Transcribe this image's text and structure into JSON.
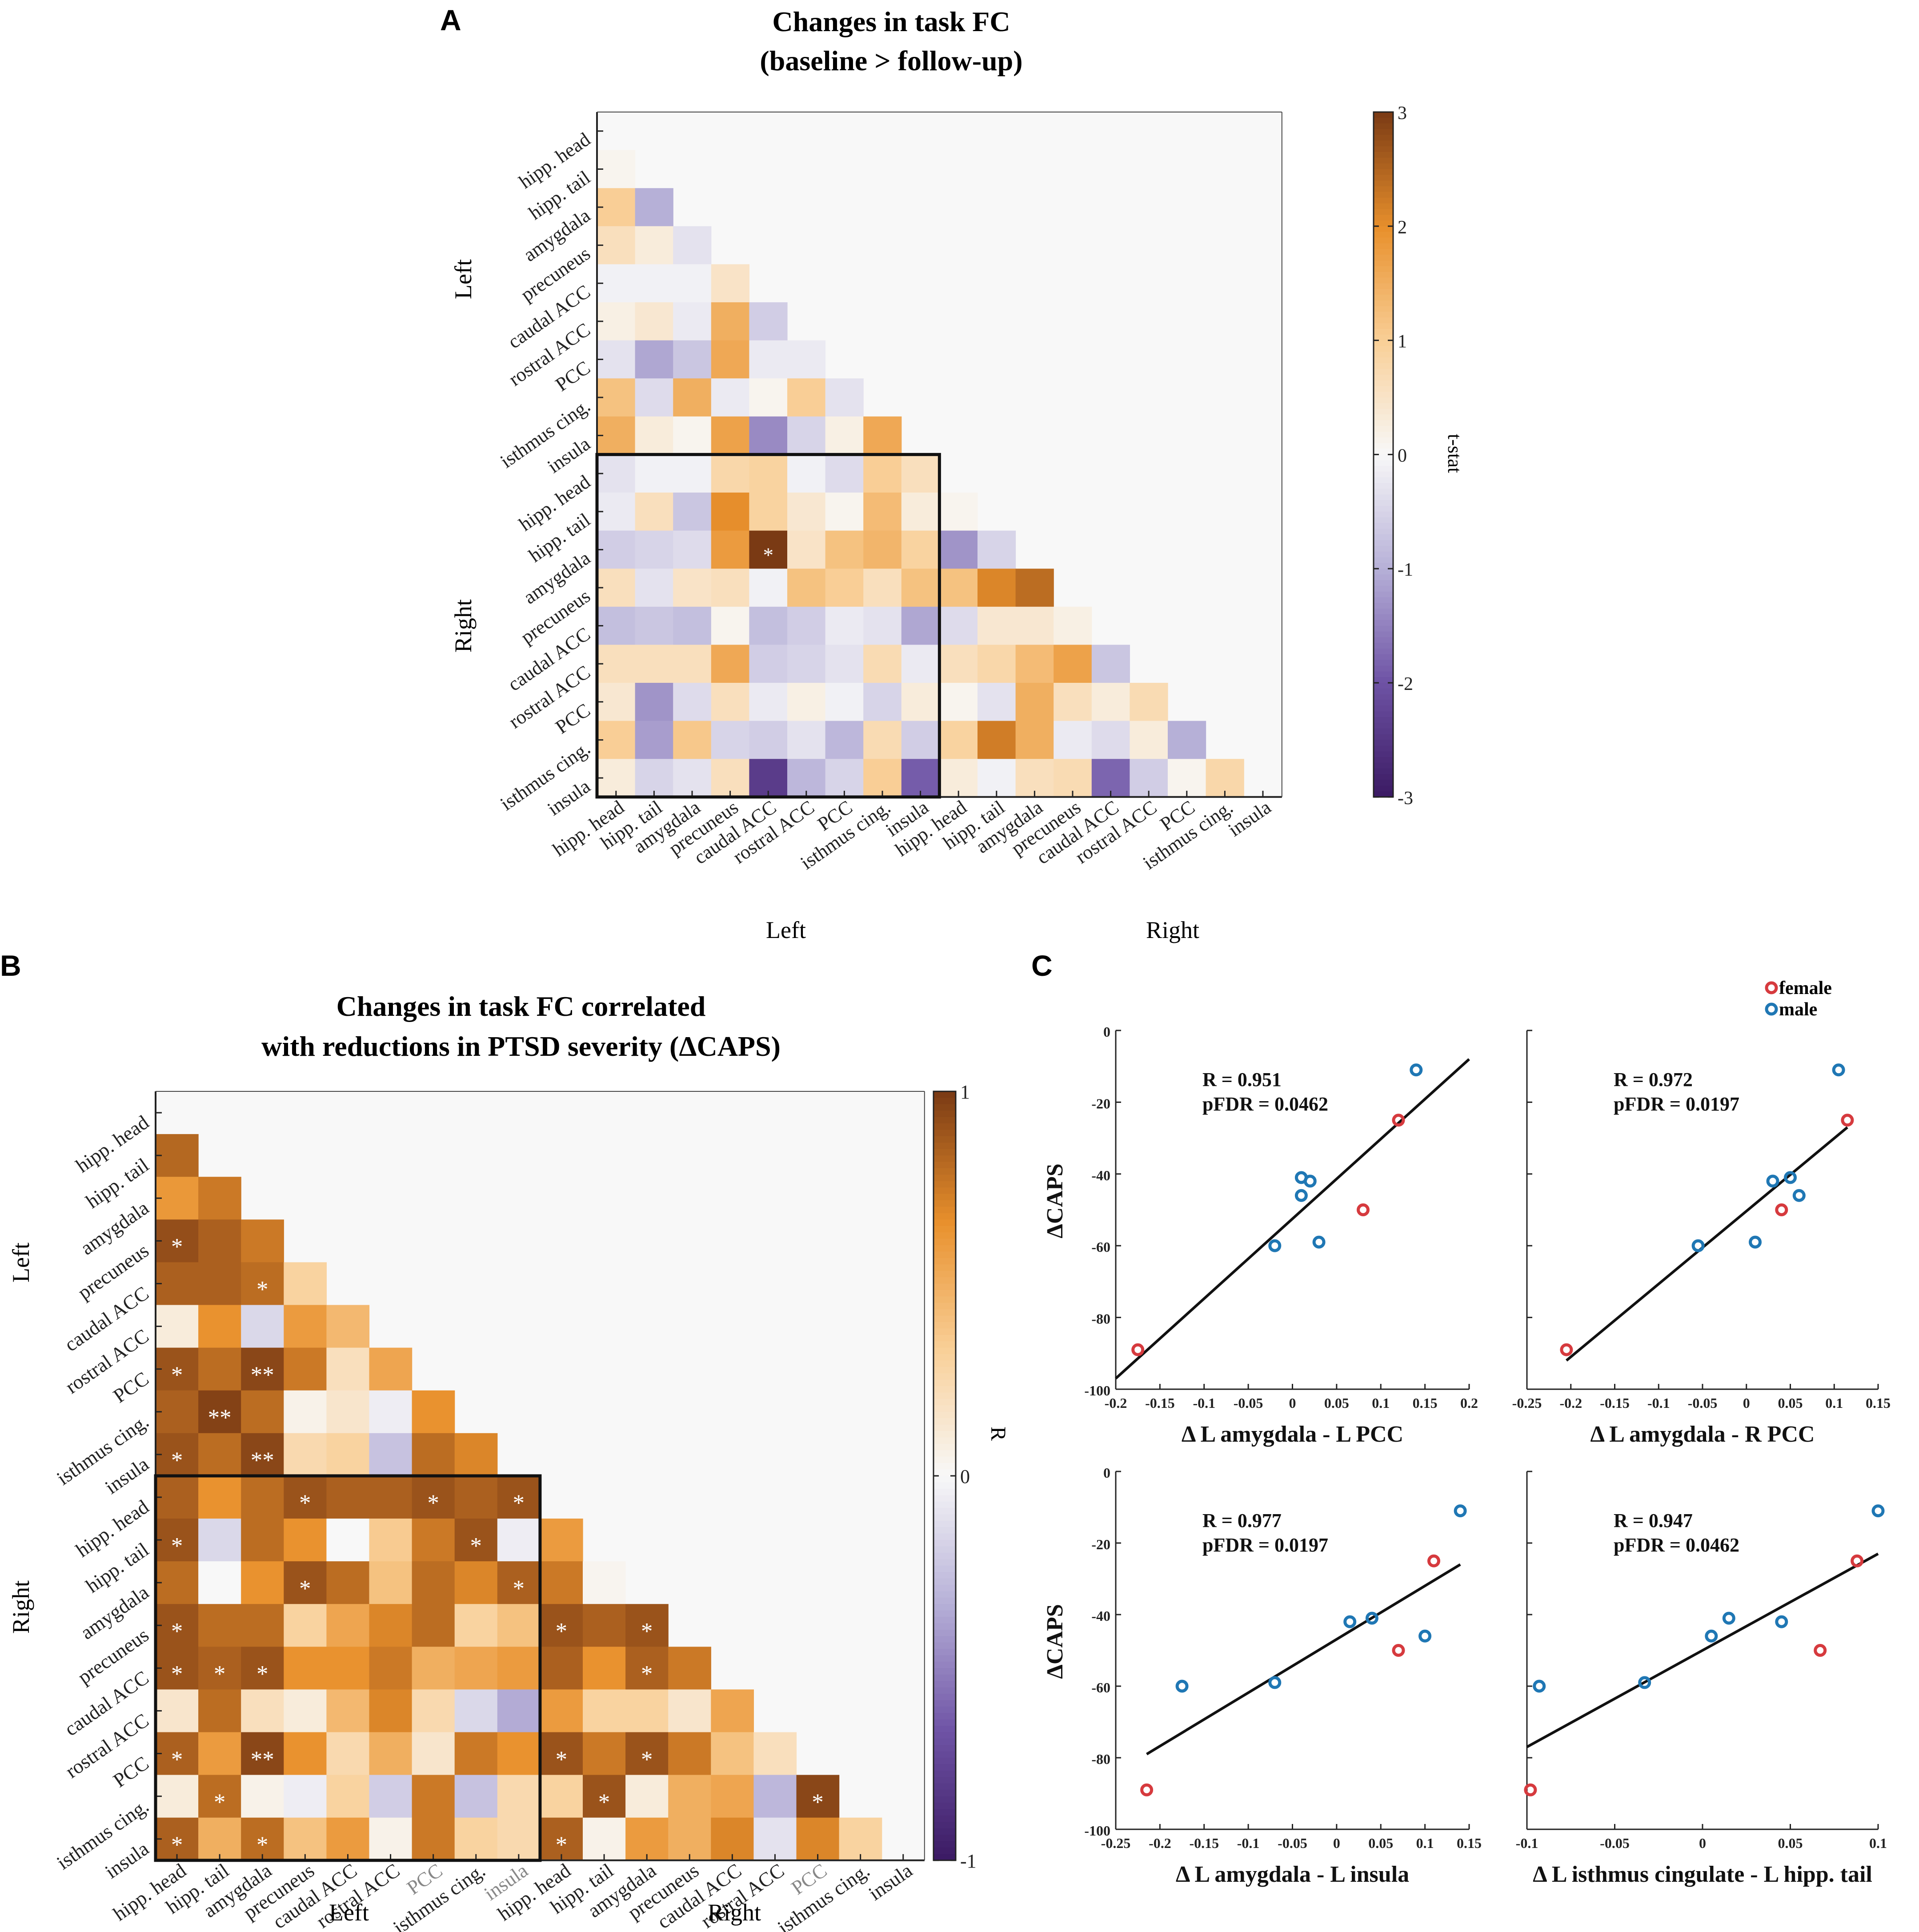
{
  "figure": {
    "panels": {
      "a": "A",
      "b": "B",
      "c": "C"
    }
  },
  "chart_data": [
    {
      "panel": "A",
      "type": "heatmap",
      "title": [
        "Changes in task FC",
        "(baseline > follow-up)"
      ],
      "row_labels": [
        "hipp. head",
        "hipp. tail",
        "amygdala",
        "precuneus",
        "caudal ACC",
        "rostral ACC",
        "PCC",
        "isthmus cing.",
        "insula",
        "hipp. head",
        "hipp. tail",
        "amygdala",
        "precuneus",
        "caudal ACC",
        "rostral ACC",
        "PCC",
        "isthmus cing.",
        "insula"
      ],
      "col_labels": [
        "hipp. head",
        "hipp. tail",
        "amygdala",
        "precuneus",
        "caudal ACC",
        "rostral ACC",
        "PCC",
        "isthmus cing.",
        "insula",
        "hipp. head",
        "hipp. tail",
        "amygdala",
        "precuneus",
        "caudal ACC",
        "rostral ACC",
        "PCC",
        "isthmus cing.",
        "insula"
      ],
      "group_labels": [
        "Left",
        "Right"
      ],
      "colorbar": {
        "label": "t-stat",
        "range": [
          -3,
          3
        ],
        "ticks": [
          "-3",
          "-2",
          "-1",
          "0",
          "1",
          "2",
          "3"
        ]
      },
      "values": [
        [],
        [
          0.1
        ],
        [
          1.0,
          -1.0
        ],
        [
          0.6,
          0.3,
          -0.3
        ],
        [
          -0.1,
          -0.1,
          -0.1,
          0.5
        ],
        [
          0.2,
          0.4,
          -0.2,
          1.5,
          -0.6
        ],
        [
          -0.3,
          -1.1,
          -0.7,
          1.6,
          -0.2,
          -0.2
        ],
        [
          1.2,
          -0.4,
          1.5,
          -0.2,
          0.1,
          1.0,
          -0.3
        ],
        [
          1.5,
          0.3,
          0.1,
          1.7,
          -1.4,
          -0.5,
          0.2,
          1.6
        ],
        [
          -0.3,
          -0.1,
          -0.1,
          0.8,
          0.9,
          -0.1,
          -0.4,
          1.0,
          0.6
        ],
        [
          -0.2,
          0.6,
          -0.7,
          2.0,
          0.9,
          0.4,
          0.1,
          1.3,
          0.3,
          0.1
        ],
        [
          -0.6,
          -0.5,
          -0.4,
          1.8,
          3.0,
          0.5,
          1.2,
          1.4,
          0.9,
          -1.3,
          -0.5
        ],
        [
          0.6,
          -0.3,
          0.5,
          0.6,
          -0.1,
          1.2,
          1.0,
          0.6,
          1.2,
          1.2,
          2.1,
          2.4
        ],
        [
          -0.8,
          -0.7,
          -0.8,
          0.1,
          -0.8,
          -0.6,
          -0.2,
          -0.3,
          -1.1,
          -0.4,
          0.4,
          0.4,
          0.2
        ],
        [
          0.6,
          0.6,
          0.6,
          1.6,
          -0.6,
          -0.5,
          -0.3,
          0.7,
          -0.2,
          0.6,
          0.8,
          1.3,
          1.7,
          -0.7
        ],
        [
          0.4,
          -1.3,
          -0.4,
          0.6,
          -0.2,
          0.2,
          -0.1,
          -0.5,
          0.3,
          0.1,
          -0.3,
          1.5,
          0.6,
          0.3,
          0.7
        ],
        [
          1.0,
          -1.2,
          1.1,
          -0.5,
          -0.6,
          -0.3,
          -0.9,
          0.7,
          -0.6,
          0.9,
          2.2,
          1.5,
          -0.2,
          -0.4,
          0.3,
          -1.0
        ],
        [
          0.3,
          -0.5,
          -0.3,
          0.6,
          -2.4,
          -0.9,
          -0.5,
          1.0,
          -1.9,
          0.3,
          -0.1,
          0.6,
          0.7,
          -1.8,
          -0.6,
          0.1,
          0.8
        ]
      ],
      "asterisks": [
        {
          "row": 11,
          "col": 4,
          "mark": "*"
        }
      ]
    },
    {
      "panel": "B",
      "type": "heatmap",
      "title": [
        "Changes in task FC correlated",
        "with reductions in PTSD severity (ΔCAPS)"
      ],
      "row_labels": [
        "hipp. head",
        "hipp. tail",
        "amygdala",
        "precuneus",
        "caudal ACC",
        "rostral ACC",
        "PCC",
        "isthmus cing.",
        "insula",
        "hipp. head",
        "hipp. tail",
        "amygdala",
        "precuneus",
        "caudal ACC",
        "rostral ACC",
        "PCC",
        "isthmus cing.",
        "insula"
      ],
      "col_labels": [
        "hipp. head",
        "hipp. tail",
        "amygdala",
        "precuneus",
        "caudal ACC",
        "rostral ACC",
        "PCC",
        "isthmus cing.",
        "insula",
        "hipp. head",
        "hipp. tail",
        "amygdala",
        "precuneus",
        "caudal ACC",
        "rostral ACC",
        "PCC",
        "isthmus cing.",
        "insula"
      ],
      "group_labels": [
        "Left",
        "Right"
      ],
      "colorbar": {
        "label": "R",
        "range": [
          -1,
          1
        ],
        "ticks": [
          "-1",
          "0",
          "1"
        ]
      },
      "values": [
        [],
        [
          0.82
        ],
        [
          0.62,
          0.75
        ],
        [
          0.92,
          0.85,
          0.75
        ],
        [
          0.85,
          0.85,
          0.8,
          0.3
        ],
        [
          0.1,
          0.65,
          -0.15,
          0.6,
          0.45
        ],
        [
          0.9,
          0.8,
          0.95,
          0.75,
          0.2,
          0.55
        ],
        [
          0.85,
          0.97,
          0.8,
          0.05,
          0.15,
          -0.05,
          0.65
        ],
        [
          0.9,
          0.8,
          0.95,
          0.25,
          0.3,
          -0.25,
          0.8,
          0.7
        ],
        [
          0.85,
          0.65,
          0.8,
          0.9,
          0.85,
          0.85,
          0.9,
          0.85,
          0.9
        ],
        [
          0.9,
          -0.15,
          0.8,
          0.65,
          0.0,
          0.35,
          0.75,
          0.9,
          -0.05,
          0.6
        ],
        [
          0.8,
          0.0,
          0.65,
          0.9,
          0.8,
          0.4,
          0.8,
          0.7,
          0.85,
          0.75,
          0.03
        ],
        [
          0.9,
          0.8,
          0.8,
          0.3,
          0.55,
          0.7,
          0.8,
          0.3,
          0.4,
          0.9,
          0.85,
          0.9
        ],
        [
          0.9,
          0.85,
          0.9,
          0.65,
          0.65,
          0.75,
          0.5,
          0.55,
          0.6,
          0.85,
          0.65,
          0.85,
          0.75
        ],
        [
          0.15,
          0.8,
          0.2,
          0.1,
          0.45,
          0.7,
          0.25,
          -0.15,
          -0.35,
          0.6,
          0.3,
          0.3,
          0.15,
          0.55
        ],
        [
          0.85,
          0.6,
          0.95,
          0.65,
          0.25,
          0.5,
          0.15,
          0.75,
          0.65,
          0.9,
          0.75,
          0.9,
          0.75,
          0.4,
          0.2
        ],
        [
          0.1,
          0.8,
          0.05,
          -0.05,
          0.3,
          -0.2,
          0.75,
          -0.25,
          0.25,
          0.3,
          0.9,
          0.1,
          0.5,
          0.55,
          -0.3,
          0.95
        ],
        [
          0.85,
          0.5,
          0.8,
          0.4,
          0.6,
          0.05,
          0.75,
          0.3,
          0.25,
          0.85,
          0.05,
          0.6,
          0.5,
          0.7,
          -0.1,
          0.7,
          0.3
        ]
      ],
      "asterisks": [
        {
          "row": 3,
          "col": 0,
          "mark": "*"
        },
        {
          "row": 4,
          "col": 2,
          "mark": "*"
        },
        {
          "row": 6,
          "col": 0,
          "mark": "*"
        },
        {
          "row": 6,
          "col": 2,
          "mark": "**"
        },
        {
          "row": 7,
          "col": 1,
          "mark": "**"
        },
        {
          "row": 8,
          "col": 0,
          "mark": "*"
        },
        {
          "row": 8,
          "col": 2,
          "mark": "**"
        },
        {
          "row": 9,
          "col": 3,
          "mark": "*"
        },
        {
          "row": 9,
          "col": 6,
          "mark": "*"
        },
        {
          "row": 9,
          "col": 8,
          "mark": "*"
        },
        {
          "row": 10,
          "col": 0,
          "mark": "*"
        },
        {
          "row": 10,
          "col": 7,
          "mark": "*"
        },
        {
          "row": 11,
          "col": 3,
          "mark": "*"
        },
        {
          "row": 11,
          "col": 8,
          "mark": "*"
        },
        {
          "row": 12,
          "col": 0,
          "mark": "*"
        },
        {
          "row": 12,
          "col": 9,
          "mark": "*"
        },
        {
          "row": 12,
          "col": 11,
          "mark": "*"
        },
        {
          "row": 13,
          "col": 0,
          "mark": "*"
        },
        {
          "row": 13,
          "col": 1,
          "mark": "*"
        },
        {
          "row": 13,
          "col": 2,
          "mark": "*"
        },
        {
          "row": 13,
          "col": 11,
          "mark": "*"
        },
        {
          "row": 15,
          "col": 0,
          "mark": "*"
        },
        {
          "row": 15,
          "col": 2,
          "mark": "**"
        },
        {
          "row": 15,
          "col": 9,
          "mark": "*"
        },
        {
          "row": 15,
          "col": 11,
          "mark": "*"
        },
        {
          "row": 16,
          "col": 1,
          "mark": "*"
        },
        {
          "row": 16,
          "col": 10,
          "mark": "*"
        },
        {
          "row": 16,
          "col": 15,
          "mark": "*"
        },
        {
          "row": 17,
          "col": 0,
          "mark": "*"
        },
        {
          "row": 17,
          "col": 2,
          "mark": "*"
        },
        {
          "row": 17,
          "col": 9,
          "mark": "*"
        }
      ]
    },
    {
      "panel": "C",
      "type": "scatter",
      "legend": [
        {
          "name": "female",
          "color": "#d63a3e"
        },
        {
          "name": "male",
          "color": "#1f77b4"
        }
      ],
      "subplots": [
        {
          "xlabel": "Δ L amygdala - L PCC",
          "ylabel": "ΔCAPS",
          "xlim": [
            -0.2,
            0.2
          ],
          "ylim": [
            -100,
            0
          ],
          "xticks": [
            "-0.2",
            "-0.15",
            "-0.1",
            "-0.05",
            "0",
            "0.05",
            "0.1",
            "0.15",
            "0.2"
          ],
          "yticks": [
            "0",
            "-20",
            "-40",
            "-60",
            "-80",
            "-100"
          ],
          "stats": [
            "R = 0.951",
            "pFDR = 0.0462"
          ],
          "female": [
            [
              -0.175,
              -89
            ],
            [
              0.08,
              -50
            ],
            [
              0.12,
              -25
            ]
          ],
          "male": [
            [
              -0.02,
              -60
            ],
            [
              0.01,
              -46
            ],
            [
              0.01,
              -41
            ],
            [
              0.02,
              -42
            ],
            [
              0.03,
              -59
            ],
            [
              0.14,
              -11
            ]
          ],
          "fit": [
            [
              -0.2,
              -97
            ],
            [
              0.2,
              -8
            ]
          ]
        },
        {
          "xlabel": "Δ L amygdala - R PCC",
          "ylabel": "",
          "xlim": [
            -0.25,
            0.15
          ],
          "ylim": [
            -100,
            0
          ],
          "xticks": [
            "-0.25",
            "-0.2",
            "-0.15",
            "-0.1",
            "-0.05",
            "0",
            "0.05",
            "0.1",
            "0.15"
          ],
          "yticks": [],
          "stats": [
            "R = 0.972",
            "pFDR = 0.0197"
          ],
          "female": [
            [
              -0.205,
              -89
            ],
            [
              0.04,
              -50
            ],
            [
              0.115,
              -25
            ]
          ],
          "male": [
            [
              -0.055,
              -60
            ],
            [
              0.01,
              -59
            ],
            [
              0.03,
              -42
            ],
            [
              0.05,
              -41
            ],
            [
              0.06,
              -46
            ],
            [
              0.105,
              -11
            ]
          ],
          "fit": [
            [
              -0.205,
              -92
            ],
            [
              0.115,
              -27
            ]
          ]
        },
        {
          "xlabel": "Δ L amygdala - L insula",
          "ylabel": "ΔCAPS",
          "xlim": [
            -0.25,
            0.15
          ],
          "ylim": [
            -100,
            0
          ],
          "xticks": [
            "-0.25",
            "-0.2",
            "-0.15",
            "-0.1",
            "-0.05",
            "0",
            "0.05",
            "0.1",
            "0.15"
          ],
          "yticks": [
            "0",
            "-20",
            "-40",
            "-60",
            "-80",
            "-100"
          ],
          "stats": [
            "R = 0.977",
            "pFDR = 0.0197"
          ],
          "female": [
            [
              -0.215,
              -89
            ],
            [
              0.07,
              -50
            ],
            [
              0.11,
              -25
            ]
          ],
          "male": [
            [
              -0.175,
              -60
            ],
            [
              -0.07,
              -59
            ],
            [
              0.015,
              -42
            ],
            [
              0.04,
              -41
            ],
            [
              0.1,
              -46
            ],
            [
              0.14,
              -11
            ]
          ],
          "fit": [
            [
              -0.215,
              -79
            ],
            [
              0.14,
              -26
            ]
          ]
        },
        {
          "xlabel": "Δ L isthmus cingulate - L hipp. tail",
          "ylabel": "",
          "xlim": [
            -0.1,
            0.1
          ],
          "ylim": [
            -100,
            0
          ],
          "xticks": [
            "-0.1",
            "-0.05",
            "0",
            "0.05",
            "0.1"
          ],
          "yticks": [],
          "stats": [
            "R = 0.947",
            "pFDR = 0.0462"
          ],
          "female": [
            [
              -0.098,
              -89
            ],
            [
              0.067,
              -50
            ],
            [
              0.088,
              -25
            ]
          ],
          "male": [
            [
              -0.093,
              -60
            ],
            [
              -0.033,
              -59
            ],
            [
              0.005,
              -46
            ],
            [
              0.015,
              -41
            ],
            [
              0.045,
              -42
            ],
            [
              0.1,
              -11
            ]
          ],
          "fit": [
            [
              -0.1,
              -77
            ],
            [
              0.1,
              -23
            ]
          ]
        }
      ]
    }
  ]
}
